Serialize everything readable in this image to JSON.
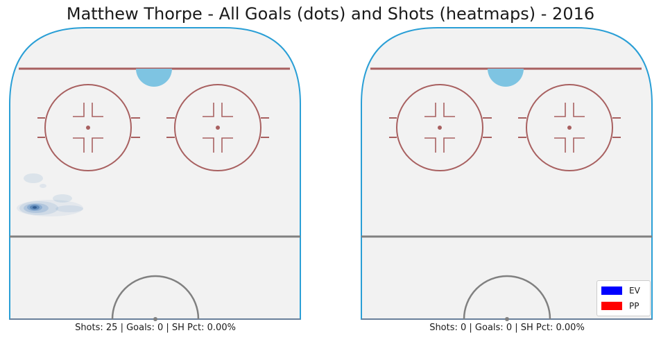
{
  "title": "Matthew Thorpe - All Goals (dots) and Shots (heatmaps) - 2016",
  "panels": [
    {
      "caption": "Shots: 25 | Goals: 0 | SH Pct: 0.00%"
    },
    {
      "caption": "Shots: 0 | Goals: 0 | SH Pct: 0.00%"
    }
  ],
  "legend": [
    {
      "label": "EV",
      "color": "#0000ff"
    },
    {
      "label": "PP",
      "color": "#ff0000"
    }
  ],
  "colors": {
    "ice": "#f2f2f2",
    "boards": "#2a9fd6",
    "red_line": "#a86060",
    "blue_line": "#808080",
    "crease": "#7ec4e2",
    "heatmap": "#3a78b8"
  },
  "chart_data": [
    {
      "type": "heatmap",
      "panel": "left",
      "description_source": "rink half-view with shot density",
      "shots": 25,
      "goals": 0,
      "sh_pct": "0.00%",
      "goal_points": [],
      "series": [
        {
          "name": "EV",
          "goals": []
        },
        {
          "name": "PP",
          "goals": []
        }
      ]
    },
    {
      "type": "heatmap",
      "panel": "right",
      "shots": 0,
      "goals": 0,
      "sh_pct": "0.00%",
      "goal_points": [],
      "series": [
        {
          "name": "EV",
          "goals": []
        },
        {
          "name": "PP",
          "goals": []
        }
      ]
    }
  ]
}
